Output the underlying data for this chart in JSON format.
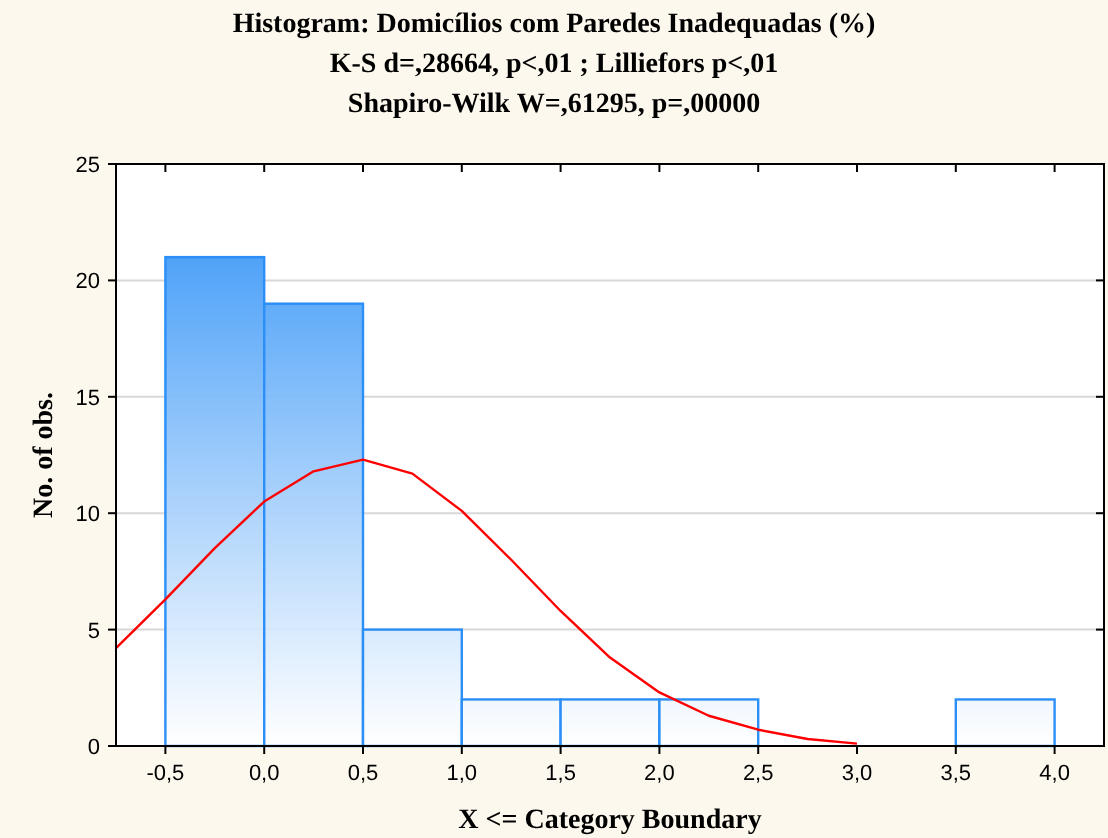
{
  "chart_data": {
    "type": "histogram",
    "title": "Histogram: Domicílios com Paredes Inadequadas (%)",
    "subtitle": "K-S d=,28664, p<,01 ; Lilliefors p<,01\nShapiro-Wilk W=,61295, p=,00000",
    "xlabel": "X <= Category Boundary",
    "ylabel": "No. of obs.",
    "bins": [
      -0.5,
      0,
      0.5,
      1,
      1.5,
      2,
      2.5,
      3,
      3.5,
      4
    ],
    "values": [
      21,
      19,
      5,
      2,
      2,
      2,
      0,
      0,
      2
    ],
    "color": "#2b8ff7",
    "series": [
      {
        "type": "line",
        "color": "#ff0000",
        "x": [
          -0.75,
          -0.5,
          -0.25,
          0,
          0.25,
          0.5,
          0.75,
          1,
          1.25,
          1.5,
          1.75,
          2,
          2.25,
          2.5,
          2.75,
          3
        ],
        "values": [
          4.2,
          6.3,
          8.5,
          10.5,
          11.8,
          12.3,
          11.7,
          10.1,
          8,
          5.8,
          3.8,
          2.3,
          1.3,
          0.7,
          0.3,
          0.1
        ]
      }
    ],
    "xlim": [
      -0.75,
      4.25
    ],
    "xticks": [
      {
        "value": -0.5,
        "label": "-0,5"
      },
      {
        "value": 0,
        "label": "0,0"
      },
      {
        "value": 0.5,
        "label": "0,5"
      },
      {
        "value": 1,
        "label": "1,0"
      },
      {
        "value": 1.5,
        "label": "1,5"
      },
      {
        "value": 2,
        "label": "2,0"
      },
      {
        "value": 2.5,
        "label": "2,5"
      },
      {
        "value": 3,
        "label": "3,0"
      },
      {
        "value": 3.5,
        "label": "3,5"
      },
      {
        "value": 4,
        "label": "4,0"
      }
    ],
    "ylim": [
      0,
      25
    ],
    "yticks": [
      0,
      5,
      10,
      15,
      20,
      25
    ],
    "grid": "y"
  }
}
